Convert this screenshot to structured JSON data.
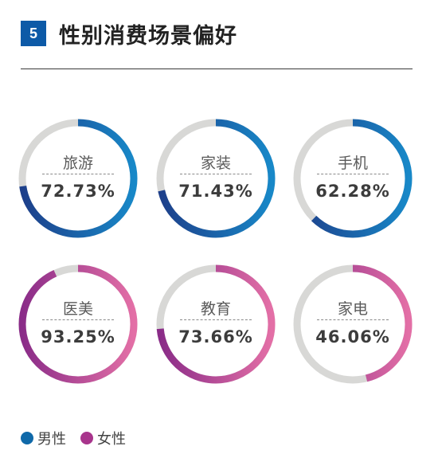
{
  "header": {
    "number": "5",
    "title": "性别消费场景偏好"
  },
  "colors": {
    "male_gradient": [
      "#1d3f8a",
      "#1888c8"
    ],
    "female_gradient": [
      "#8a2c88",
      "#e36fa6"
    ],
    "track": "#d8d8d6",
    "badge": "#0d5aa7"
  },
  "legend": [
    {
      "label": "男性",
      "color": "#0f69a9"
    },
    {
      "label": "女性",
      "color": "#a8358c"
    }
  ],
  "chart_data": {
    "type": "donut",
    "categories": [
      "旅游",
      "家装",
      "手机",
      "医美",
      "教育",
      "家电"
    ],
    "items": [
      {
        "label": "旅游",
        "value": 72.73,
        "display": "72.73%",
        "group": "男性"
      },
      {
        "label": "家装",
        "value": 71.43,
        "display": "71.43%",
        "group": "男性"
      },
      {
        "label": "手机",
        "value": 62.28,
        "display": "62.28%",
        "group": "男性"
      },
      {
        "label": "医美",
        "value": 93.25,
        "display": "93.25%",
        "group": "女性"
      },
      {
        "label": "教育",
        "value": 73.66,
        "display": "73.66%",
        "group": "女性"
      },
      {
        "label": "家电",
        "value": 46.06,
        "display": "46.06%",
        "group": "女性"
      }
    ]
  }
}
